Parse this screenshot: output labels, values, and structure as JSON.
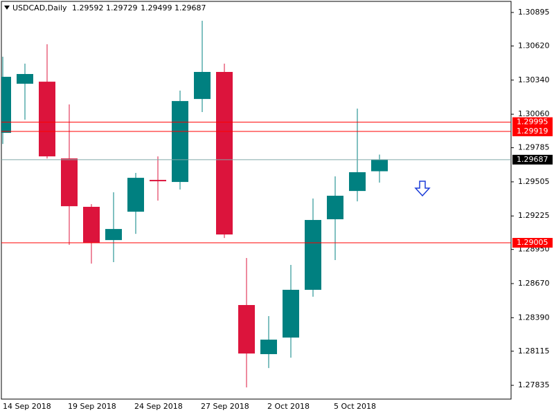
{
  "chart_data": {
    "type": "candlestick",
    "title": "USDCAD,Daily",
    "categories": [
      "14 Sep 2018",
      null,
      null,
      "19 Sep 2018",
      null,
      null,
      "24 Sep 2018",
      null,
      null,
      "27 Sep 2018",
      null,
      null,
      "2 Oct 2018",
      null,
      null,
      "5 Oct 2018",
      null,
      null
    ],
    "open": [
      1.29907,
      1.3031,
      1.30327,
      1.29697,
      1.293,
      1.29027,
      1.2926,
      1.29521,
      1.29504,
      1.30185,
      1.30407,
      1.28494,
      1.28091,
      1.28227,
      1.28619,
      1.29198,
      1.2943,
      1.29592
    ],
    "high": [
      1.30532,
      1.30475,
      1.30634,
      1.3014,
      1.29322,
      1.29419,
      1.29578,
      1.29714,
      1.30254,
      1.30827,
      1.30475,
      1.2888,
      1.28403,
      1.28823,
      1.29368,
      1.2955,
      1.30106,
      1.29729
    ],
    "low": [
      1.29816,
      1.30015,
      1.29697,
      1.28988,
      1.28834,
      1.28846,
      1.29078,
      1.29351,
      1.29442,
      1.30078,
      1.29044,
      1.27818,
      1.27977,
      1.28062,
      1.28562,
      1.28863,
      1.29345,
      1.29499
    ],
    "close": [
      1.30367,
      1.3039,
      1.29714,
      1.29305,
      1.29005,
      1.29118,
      1.29538,
      1.2951,
      1.30168,
      1.30407,
      1.29073,
      1.28096,
      1.2821,
      1.28619,
      1.29192,
      1.29391,
      1.29584,
      1.29687
    ],
    "up_color": "#008080",
    "down_color": "#dc143c",
    "ylim": [
      1.27722,
      1.30986
    ],
    "yticks": [
      1.30895,
      {
        "value": 1.3062,
        "label": "1.30620"
      },
      {
        "value": 1.3034,
        "label": "1.30340"
      },
      {
        "value": 1.3006,
        "label": "1.30060"
      },
      1.29785,
      1.29505,
      1.29225,
      {
        "value": 1.2895,
        "label": "1.28950"
      },
      {
        "value": 1.2867,
        "label": "1.28670"
      },
      {
        "value": 1.2839,
        "label": "1.28390"
      },
      1.28115,
      1.27835
    ],
    "levels": [
      {
        "value": 1.29995,
        "color": "#ff0000"
      },
      {
        "value": 1.29919,
        "color": "#ff0000"
      },
      {
        "value": 1.29005,
        "color": "#ff0000"
      }
    ],
    "price_line_color": "#7fa6a6"
  }
}
